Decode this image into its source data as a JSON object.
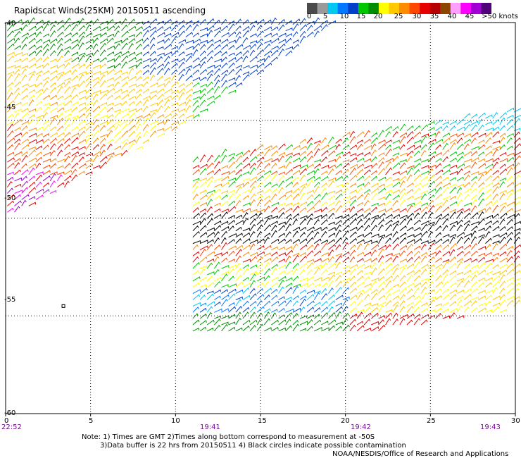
{
  "title": "Rapidscat Winds(25KM) 20150511 ascending",
  "colorbar": {
    "colors": [
      "#4a4a4a",
      "#9a9a9a",
      "#00c8f0",
      "#0078ff",
      "#0040c8",
      "#00c800",
      "#008c00",
      "#ffff00",
      "#ffc800",
      "#ff8c00",
      "#ff4800",
      "#e60000",
      "#b40000",
      "#8c4600",
      "#ffa0ff",
      "#ff00ff",
      "#a000d2",
      "#500078"
    ],
    "labels": [
      "0",
      "5",
      "10",
      "15",
      "20",
      "25",
      "30",
      "35",
      "40",
      "45",
      ">50 knots"
    ]
  },
  "axes": {
    "x_ticks": [
      "0",
      "5",
      "10",
      "15",
      "20",
      "25",
      "30"
    ],
    "y_ticks": [
      "-40",
      "-45",
      "-50",
      "-55",
      "-60"
    ],
    "time_labels": [
      "22:52",
      "19:41",
      "19:42",
      "19:43"
    ]
  },
  "map_data": {
    "lon_range": [
      0,
      30
    ],
    "lat_range": [
      -60,
      -40
    ],
    "swaths": [
      {
        "name": "upper-left",
        "polygon": [
          [
            0,
            -40
          ],
          [
            19.5,
            -40
          ],
          [
            10,
            -45.5
          ],
          [
            0,
            -50
          ]
        ]
      },
      {
        "name": "lower-right",
        "polygon": [
          [
            11,
            -47
          ],
          [
            30,
            -44.5
          ],
          [
            30,
            -54.7
          ],
          [
            22,
            -55.8
          ],
          [
            11,
            -55.8
          ]
        ]
      }
    ],
    "black_band": {
      "lat_center": -50.8
    },
    "small_marker": {
      "lon": 3.4,
      "lat": -54.5
    }
  },
  "notes": {
    "line1": "Note: 1) Times are GMT 2)Times along bottom correspond to measurement at -50S",
    "line2": "3)Data buffer is 22 hrs from 20150511 4) Black circles indicate possible contamination",
    "credit": "NOAA/NESDIS/Office of Research and Applications"
  }
}
